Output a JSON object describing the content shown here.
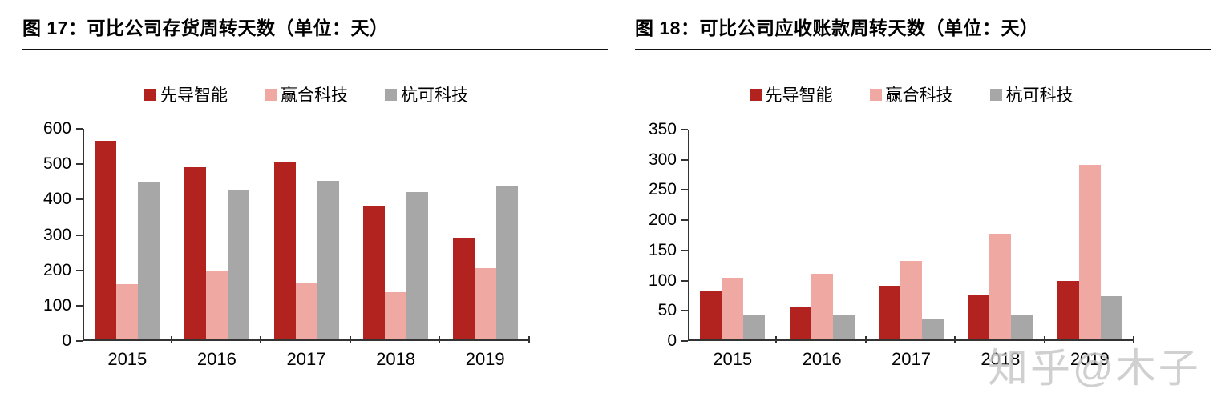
{
  "watermark": {
    "text": "知乎@木子"
  },
  "colors": {
    "series_red": "#b2221e",
    "series_pink": "#efa8a2",
    "series_gray": "#a7a7a7",
    "axis": "#333333",
    "title_rule": "#111111",
    "watermark": "#c6c6c6"
  },
  "chart_data": [
    {
      "type": "bar",
      "title": "图 17：可比公司存货周转天数（单位：天）",
      "categories": [
        "2015",
        "2016",
        "2017",
        "2018",
        "2019"
      ],
      "series": [
        {
          "name": "先导智能",
          "color": "#b2221e",
          "values": [
            566,
            492,
            508,
            382,
            293
          ]
        },
        {
          "name": "赢合科技",
          "color": "#efa8a2",
          "values": [
            160,
            200,
            162,
            137,
            207
          ]
        },
        {
          "name": "杭可科技",
          "color": "#a7a7a7",
          "values": [
            450,
            426,
            452,
            422,
            438
          ]
        }
      ],
      "xlabel": "",
      "ylabel": "",
      "ylim": [
        0,
        600
      ],
      "ytick_step": 100,
      "grid": false,
      "legend_position": "top"
    },
    {
      "type": "bar",
      "title": "图 18：可比公司应收账款周转天数（单位：天）",
      "categories": [
        "2015",
        "2016",
        "2017",
        "2018",
        "2019"
      ],
      "series": [
        {
          "name": "先导智能",
          "color": "#b2221e",
          "values": [
            82,
            57,
            91,
            77,
            99
          ]
        },
        {
          "name": "赢合科技",
          "color": "#efa8a2",
          "values": [
            105,
            112,
            133,
            178,
            292
          ]
        },
        {
          "name": "杭可科技",
          "color": "#a7a7a7",
          "values": [
            42,
            42,
            37,
            44,
            74
          ]
        }
      ],
      "xlabel": "",
      "ylabel": "",
      "ylim": [
        0,
        350
      ],
      "ytick_step": 50,
      "grid": false,
      "legend_position": "top"
    }
  ]
}
